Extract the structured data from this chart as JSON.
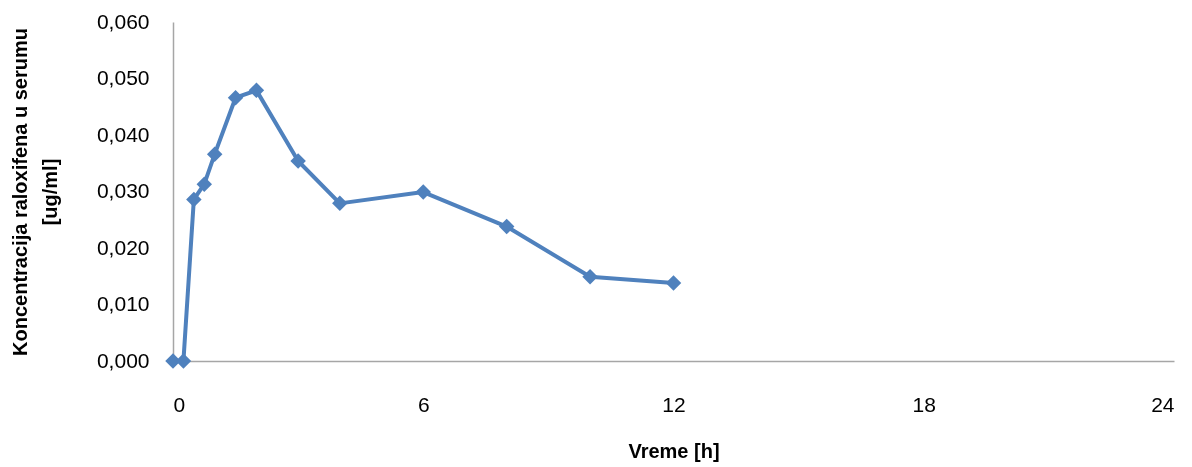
{
  "chart_data": {
    "type": "line",
    "xlabel": "Vreme [h]",
    "ylabel": "Koncentracija raloxifena u serumu\n[ug/ml]",
    "x": [
      0,
      0.25,
      0.5,
      0.75,
      1,
      1.5,
      2,
      3,
      4,
      6,
      8,
      10,
      12
    ],
    "series": [
      {
        "color": "#4f81bd",
        "values": [
          0,
          0,
          0.0286,
          0.0313,
          0.0366,
          0.0466,
          0.0479,
          0.0354,
          0.0279,
          0.0299,
          0.0238,
          0.0149,
          0.0138
        ]
      }
    ],
    "xlim": [
      0,
      24
    ],
    "xticks": [
      0,
      6,
      12,
      18,
      24
    ],
    "ylim": [
      0,
      0.06
    ],
    "yticks": [
      {
        "value": 0,
        "label": "0,000"
      },
      {
        "value": 0.01,
        "label": "0,010"
      },
      {
        "value": 0.02,
        "label": "0,020"
      },
      {
        "value": 0.03,
        "label": "0,030"
      },
      {
        "value": 0.04,
        "label": "0,040"
      },
      {
        "value": 0.05,
        "label": "0,050"
      },
      {
        "value": 0.06,
        "label": "0,060"
      }
    ],
    "marker": "diamond",
    "line_style": "solid",
    "grid": false
  }
}
